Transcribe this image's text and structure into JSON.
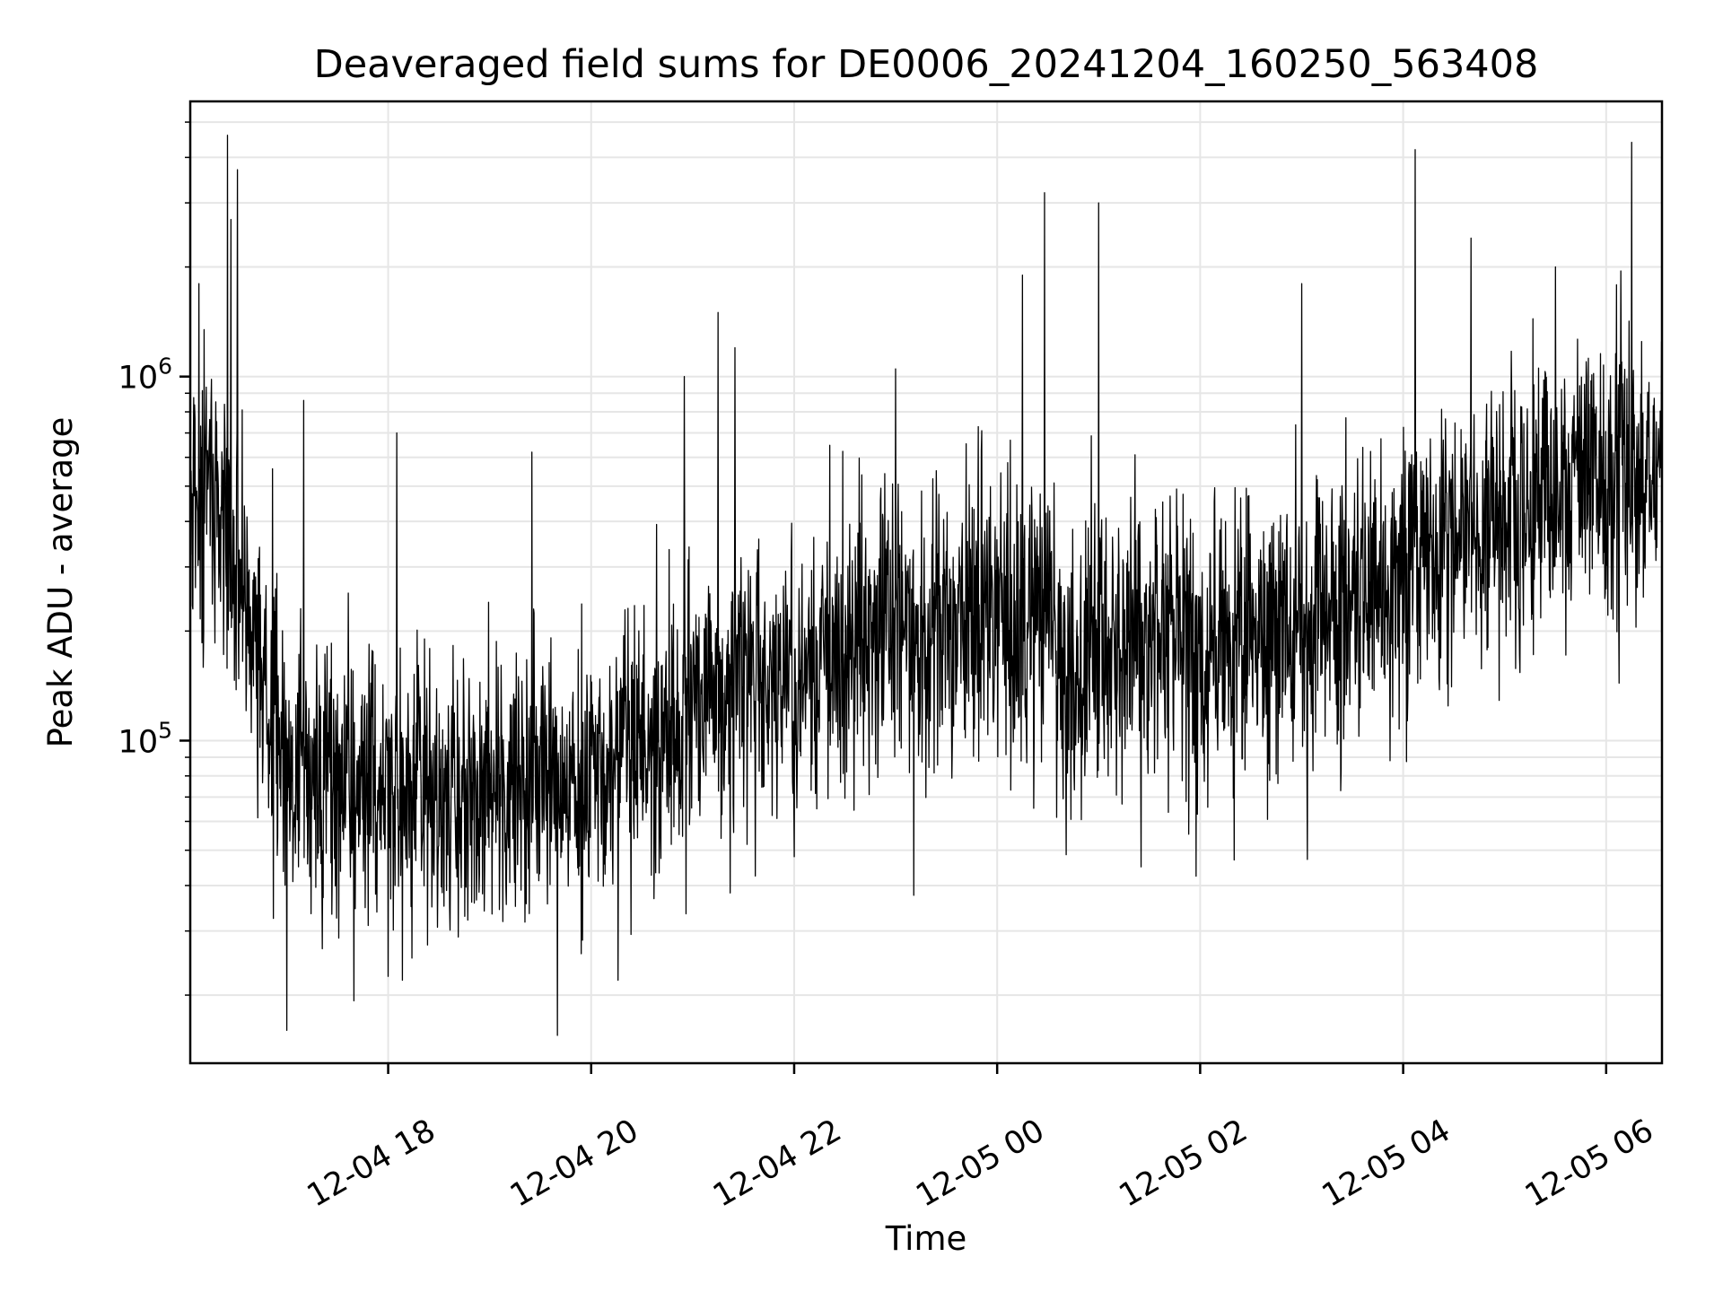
{
  "chart_data": {
    "type": "line",
    "title": "Deaveraged field sums for DE0006_20241204_160250_563408",
    "xlabel": "Time",
    "ylabel": "Peak ADU - average",
    "yscale": "log",
    "xlim": [
      "2024-12-04 16:03",
      "2024-12-05 06:33"
    ],
    "ylim": [
      13000,
      5700000
    ],
    "x_ticks": [
      {
        "value": "2024-12-04 18:00",
        "label": "12-04 18"
      },
      {
        "value": "2024-12-04 20:00",
        "label": "12-04 20"
      },
      {
        "value": "2024-12-04 22:00",
        "label": "12-04 22"
      },
      {
        "value": "2024-12-05 00:00",
        "label": "12-05 00"
      },
      {
        "value": "2024-12-05 02:00",
        "label": "12-05 02"
      },
      {
        "value": "2024-12-05 04:00",
        "label": "12-05 04"
      },
      {
        "value": "2024-12-05 06:00",
        "label": "12-05 06"
      }
    ],
    "y_ticks": [
      {
        "value": 100000,
        "base": "10",
        "exp": "5"
      },
      {
        "value": 1000000,
        "base": "10",
        "exp": "6"
      }
    ],
    "grid": true,
    "line_color": "#000000",
    "trend": {
      "x": [
        "2024-12-04 16:03",
        "2024-12-04 16:20",
        "2024-12-04 16:35",
        "2024-12-04 17:00",
        "2024-12-04 17:30",
        "2024-12-04 18:00",
        "2024-12-04 18:30",
        "2024-12-04 19:00",
        "2024-12-04 19:30",
        "2024-12-04 20:00",
        "2024-12-04 20:30",
        "2024-12-04 21:00",
        "2024-12-04 21:30",
        "2024-12-04 22:00",
        "2024-12-04 22:30",
        "2024-12-04 23:00",
        "2024-12-04 23:30",
        "2024-12-05 00:00",
        "2024-12-05 00:30",
        "2024-12-05 00:40",
        "2024-12-05 01:00",
        "2024-12-05 01:30",
        "2024-12-05 02:00",
        "2024-12-05 02:30",
        "2024-12-05 03:00",
        "2024-12-05 03:30",
        "2024-12-05 04:00",
        "2024-12-05 04:30",
        "2024-12-05 05:00",
        "2024-12-05 05:30",
        "2024-12-05 06:00",
        "2024-12-05 06:33"
      ],
      "median": [
        500000,
        450000,
        250000,
        100000,
        75000,
        72000,
        68000,
        70000,
        75000,
        82000,
        100000,
        125000,
        140000,
        150000,
        160000,
        200000,
        210000,
        215000,
        230000,
        140000,
        190000,
        200000,
        175000,
        180000,
        200000,
        230000,
        280000,
        380000,
        420000,
        480000,
        520000,
        600000
      ]
    },
    "spikes": [
      {
        "x": "2024-12-04 16:08",
        "y": 1800000
      },
      {
        "x": "2024-12-04 16:25",
        "y": 4600000
      },
      {
        "x": "2024-12-04 16:27",
        "y": 2700000
      },
      {
        "x": "2024-12-04 16:31",
        "y": 3700000
      },
      {
        "x": "2024-12-04 17:10",
        "y": 860000
      },
      {
        "x": "2024-12-04 18:05",
        "y": 700000
      },
      {
        "x": "2024-12-04 19:25",
        "y": 620000
      },
      {
        "x": "2024-12-04 20:55",
        "y": 1000000
      },
      {
        "x": "2024-12-04 21:15",
        "y": 1500000
      },
      {
        "x": "2024-12-04 21:25",
        "y": 1200000
      },
      {
        "x": "2024-12-04 23:00",
        "y": 1050000
      },
      {
        "x": "2024-12-05 00:15",
        "y": 1900000
      },
      {
        "x": "2024-12-05 00:28",
        "y": 3200000
      },
      {
        "x": "2024-12-05 01:00",
        "y": 3000000
      },
      {
        "x": "2024-12-05 03:00",
        "y": 1800000
      },
      {
        "x": "2024-12-05 04:07",
        "y": 4200000
      },
      {
        "x": "2024-12-05 04:40",
        "y": 2400000
      },
      {
        "x": "2024-12-05 05:30",
        "y": 2000000
      },
      {
        "x": "2024-12-05 06:15",
        "y": 4400000
      },
      {
        "x": "2024-12-04 17:00",
        "y": 16000
      },
      {
        "x": "2024-12-04 19:40",
        "y": 15500
      },
      {
        "x": "2024-12-04 22:00",
        "y": 48000
      },
      {
        "x": "2024-12-05 01:25",
        "y": 45000
      },
      {
        "x": "2024-12-05 02:20",
        "y": 47000
      }
    ]
  }
}
